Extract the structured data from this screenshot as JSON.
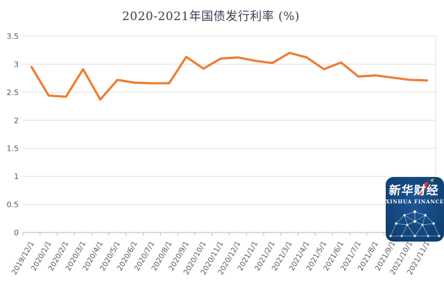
{
  "chart_data": {
    "type": "line",
    "title": "2020-2021年国债发行利率 (%)",
    "categories": [
      "2019/12/1",
      "2020/1/1",
      "2020/2/1",
      "2020/3/1",
      "2020/4/1",
      "2020/5/1",
      "2020/6/1",
      "2020/7/1",
      "2020/8/1",
      "2020/9/1",
      "2020/10/1",
      "2020/11/1",
      "2020/12/1",
      "2021/1/1",
      "2021/2/1",
      "2021/3/1",
      "2021/4/1",
      "2021/5/1",
      "2021/6/1",
      "2021/7/1",
      "2021/8/1",
      "2021/9/1",
      "2021/10/1",
      "2021/11/1"
    ],
    "values": [
      2.95,
      2.44,
      2.42,
      2.91,
      2.37,
      2.72,
      2.67,
      2.66,
      2.66,
      3.13,
      2.92,
      3.1,
      3.12,
      3.06,
      3.02,
      3.2,
      3.12,
      2.91,
      3.03,
      2.78,
      2.8,
      2.76,
      2.72,
      2.71
    ],
    "xlabel": "",
    "ylabel": "",
    "ylim": [
      0,
      3.5
    ],
    "y_ticks": [
      "0",
      "0.5",
      "1",
      "1.5",
      "2",
      "2.5",
      "3",
      "3.5"
    ],
    "grid": true,
    "legend": "none",
    "line_color": "#ED7D31"
  },
  "logo": {
    "name_cn": "新华财经",
    "name_en": "XINHUA FINANCE",
    "bg_color_inner": "#1D5796",
    "bg_color_outer": "#0D3A6A",
    "accent_red": "#E23B3B",
    "accent_green": "#9DC93D",
    "network_color": "#A8C4E0"
  },
  "colors": {
    "background": "#FFFFFF",
    "grid": "#DEDEDE",
    "axis": "#C4C4C4",
    "tick_label": "#595959",
    "title": "#3C3C50"
  }
}
